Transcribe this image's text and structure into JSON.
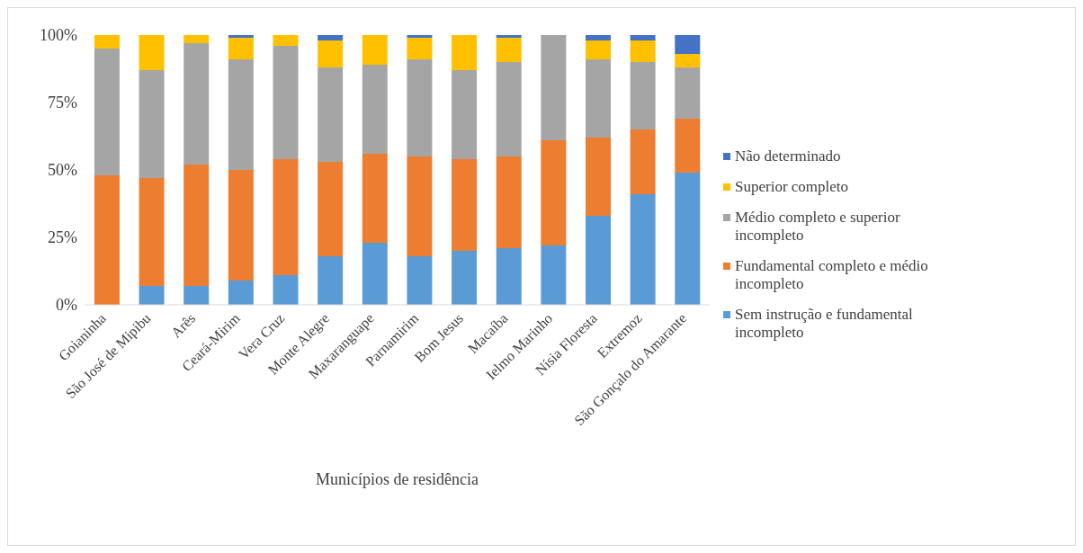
{
  "chart_data": {
    "type": "bar",
    "stacked": true,
    "xlabel": "Municípios de residência",
    "categories": [
      "Goianinha",
      "São José de Mipibu",
      "Arês",
      "Ceará-Mirim",
      "Vera Cruz",
      "Monte Alegre",
      "Maxaranguape",
      "Parnamirim",
      "Bom Jesus",
      "Macaíba",
      "Ielmo Marinho",
      "Nísia Floresta",
      "Extremoz",
      "São Gonçalo do Amarante"
    ],
    "series": [
      {
        "name": "Sem instrução e fundamental incompleto",
        "color": "#5b9bd5",
        "values": [
          0,
          7,
          7,
          9,
          11,
          18,
          23,
          18,
          20,
          21,
          22,
          33,
          41,
          49
        ]
      },
      {
        "name": "Fundamental completo e médio incompleto",
        "color": "#ed7d31",
        "values": [
          48,
          40,
          45,
          41,
          43,
          35,
          33,
          37,
          34,
          34,
          39,
          29,
          24,
          20
        ]
      },
      {
        "name": "Médio completo e superior incompleto",
        "color": "#a5a5a5",
        "values": [
          47,
          40,
          45,
          41,
          42,
          35,
          33,
          36,
          33,
          35,
          39,
          29,
          25,
          19
        ]
      },
      {
        "name": "Superior completo",
        "color": "#ffc000",
        "values": [
          5,
          13,
          3,
          8,
          4,
          10,
          11,
          8,
          13,
          9,
          0,
          7,
          8,
          5
        ]
      },
      {
        "name": "Não determinado",
        "color": "#4472c4",
        "values": [
          0,
          0,
          0,
          1,
          0,
          2,
          0,
          1,
          0,
          1,
          0,
          2,
          2,
          7
        ]
      }
    ],
    "ylim": [
      0,
      100
    ],
    "yticks": [
      {
        "value": 0,
        "label": "0%"
      },
      {
        "value": 25,
        "label": "25%"
      },
      {
        "value": 50,
        "label": "50%"
      },
      {
        "value": 75,
        "label": "75%"
      },
      {
        "value": 100,
        "label": "100%"
      }
    ],
    "grid": false,
    "legend": "right"
  }
}
